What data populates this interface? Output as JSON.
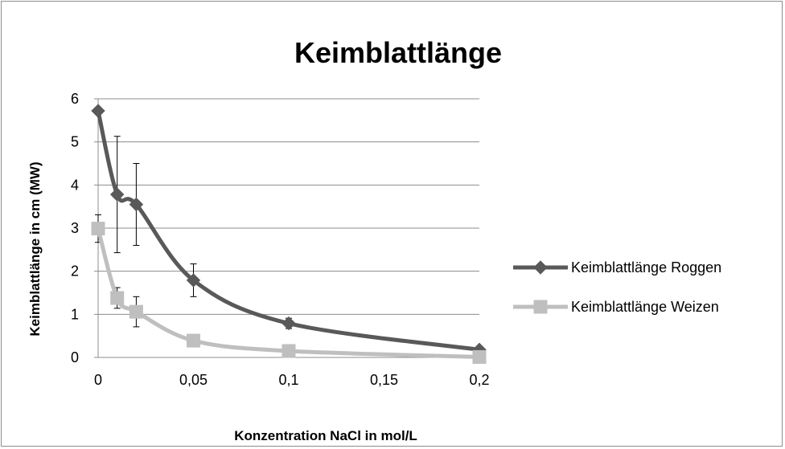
{
  "chart_data": {
    "type": "line",
    "title": "Keimblattlänge",
    "xlabel": "Konzentration NaCl in mol/L",
    "ylabel": "Keimblattlänge in cm (MW)",
    "xlim": [
      0,
      0.2
    ],
    "ylim": [
      0,
      6
    ],
    "xticks": [
      0,
      0.05,
      0.1,
      0.15,
      0.2
    ],
    "xtick_labels": [
      "0",
      "0,05",
      "0,1",
      "0,15",
      "0,2"
    ],
    "yticks": [
      0,
      1,
      2,
      3,
      4,
      5,
      6
    ],
    "ytick_labels": [
      "0",
      "1",
      "2",
      "3",
      "4",
      "5",
      "6"
    ],
    "grid": "horizontal",
    "smooth": true,
    "legend": "right",
    "series": [
      {
        "name": "Keimblattlänge Roggen",
        "color": "#595959",
        "marker": "diamond",
        "x": [
          0,
          0.01,
          0.02,
          0.05,
          0.1,
          0.2
        ],
        "y": [
          5.72,
          3.78,
          3.55,
          1.79,
          0.79,
          0.18
        ],
        "error": [
          null,
          1.35,
          0.95,
          0.38,
          0.12,
          null
        ]
      },
      {
        "name": "Keimblattlänge Weizen",
        "color": "#bfbfbf",
        "marker": "square",
        "x": [
          0,
          0.01,
          0.02,
          0.05,
          0.1,
          0.2
        ],
        "y": [
          2.99,
          1.38,
          1.06,
          0.39,
          0.15,
          0.01
        ],
        "error": [
          0.32,
          0.24,
          0.35,
          null,
          null,
          null
        ]
      }
    ]
  }
}
